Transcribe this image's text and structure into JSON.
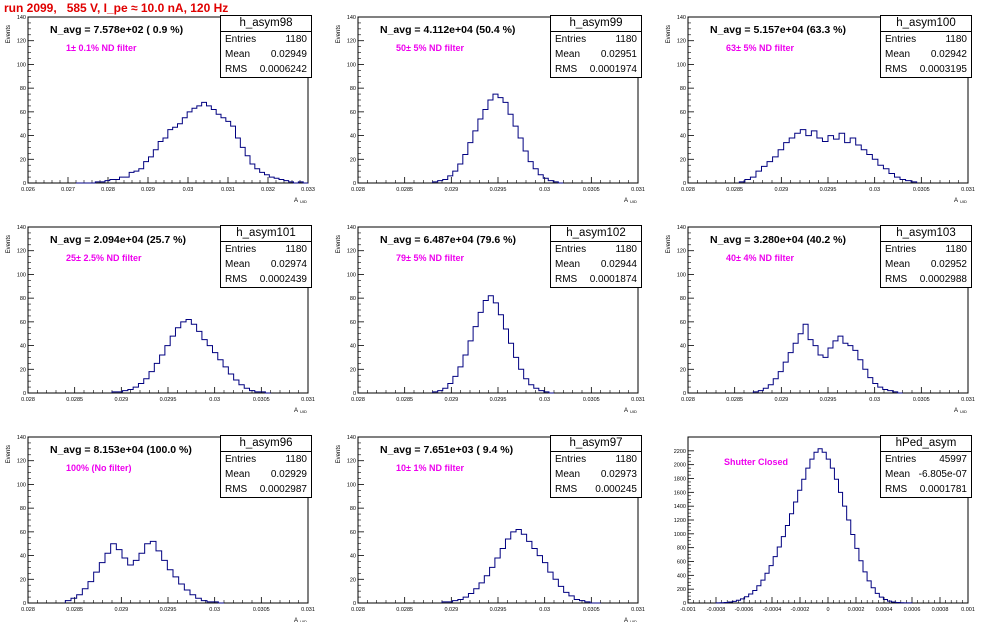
{
  "page": {
    "title": "run 2099,   585 V, I_pe ≈ 10.0 nA, 120 Hz"
  },
  "chart_data": [
    {
      "type": "histogram",
      "name": "h_asym98",
      "n_avg_label": "N_avg = 7.578e+02 ( 0.9 %)",
      "filter_label": "1± 0.1% ND filter",
      "stats": {
        "entries": "1180",
        "mean": "0.02949",
        "rms": "0.0006242"
      },
      "xlim": [
        0.026,
        0.033
      ],
      "ylim": [
        0,
        140
      ],
      "xticks": [
        0.026,
        0.027,
        0.028,
        0.029,
        0.03,
        0.031,
        0.032,
        0.033
      ],
      "xtick_labels": [
        "0.026",
        "0.027",
        "0.028",
        "0.029",
        "0.03",
        "0.031",
        "0.032",
        "0.033"
      ],
      "yticks": [
        0,
        20,
        40,
        60,
        80,
        100,
        120,
        140
      ],
      "xlabel": "A_UID",
      "ylabel": "Events",
      "bin_edges": [
        0.0272,
        0.033
      ],
      "values": [
        0,
        0,
        0,
        0,
        1,
        1,
        2,
        3,
        3,
        5,
        5,
        9,
        10,
        12,
        18,
        22,
        28,
        35,
        38,
        45,
        47,
        50,
        55,
        60,
        63,
        65,
        68,
        65,
        62,
        58,
        55,
        52,
        48,
        38,
        30,
        23,
        16,
        12,
        9,
        7,
        5,
        4,
        3,
        2,
        1,
        0,
        1,
        0
      ]
    },
    {
      "type": "histogram",
      "name": "h_asym99",
      "n_avg_label": "N_avg = 4.112e+04 (50.4 %)",
      "filter_label": "50± 5% ND filter",
      "stats": {
        "entries": "1180",
        "mean": "0.02951",
        "rms": "0.0001974"
      },
      "xlim": [
        0.028,
        0.031
      ],
      "ylim": [
        0,
        140
      ],
      "xticks": [
        0.028,
        0.0285,
        0.029,
        0.0295,
        0.03,
        0.0305,
        0.031
      ],
      "xtick_labels": [
        "0.028",
        "0.0285",
        "0.029",
        "0.0295",
        "0.03",
        "0.0305",
        "0.031"
      ],
      "yticks": [
        0,
        20,
        40,
        60,
        80,
        100,
        120,
        140
      ],
      "xlabel": "A_UID",
      "ylabel": "Events",
      "bin_edges": [
        0.0288,
        0.0302
      ],
      "values": [
        1,
        2,
        3,
        6,
        10,
        16,
        24,
        34,
        44,
        54,
        62,
        70,
        75,
        72,
        68,
        58,
        48,
        38,
        27,
        18,
        12,
        7,
        4,
        2,
        1,
        0
      ]
    },
    {
      "type": "histogram",
      "name": "h_asym100",
      "n_avg_label": "N_avg = 5.157e+04 (63.3 %)",
      "filter_label": "63± 5% ND filter",
      "stats": {
        "entries": "1180",
        "mean": "0.02942",
        "rms": "0.0003195"
      },
      "xlim": [
        0.028,
        0.031
      ],
      "ylim": [
        0,
        140
      ],
      "xticks": [
        0.028,
        0.0285,
        0.029,
        0.0295,
        0.03,
        0.0305,
        0.031
      ],
      "xtick_labels": [
        "0.028",
        "0.0285",
        "0.029",
        "0.0295",
        "0.03",
        "0.0305",
        "0.031"
      ],
      "yticks": [
        0,
        20,
        40,
        60,
        80,
        100,
        120,
        140
      ],
      "xlabel": "A_UID",
      "ylabel": "Events",
      "bin_edges": [
        0.02855,
        0.03045
      ],
      "values": [
        1,
        3,
        5,
        10,
        14,
        18,
        22,
        28,
        34,
        38,
        42,
        45,
        40,
        44,
        38,
        35,
        40,
        37,
        42,
        34,
        38,
        32,
        28,
        24,
        20,
        15,
        12,
        8,
        5,
        3,
        2,
        1
      ]
    },
    {
      "type": "histogram",
      "name": "h_asym101",
      "n_avg_label": "N_avg = 2.094e+04 (25.7 %)",
      "filter_label": "25± 2.5% ND filter",
      "stats": {
        "entries": "1180",
        "mean": "0.02974",
        "rms": "0.0002439"
      },
      "xlim": [
        0.028,
        0.031
      ],
      "ylim": [
        0,
        140
      ],
      "xticks": [
        0.028,
        0.0285,
        0.029,
        0.0295,
        0.03,
        0.0305,
        0.031
      ],
      "xtick_labels": [
        "0.028",
        "0.0285",
        "0.029",
        "0.0295",
        "0.03",
        "0.0305",
        "0.031"
      ],
      "yticks": [
        0,
        20,
        40,
        60,
        80,
        100,
        120,
        140
      ],
      "xlabel": "A_UID",
      "ylabel": "Events",
      "bin_edges": [
        0.0289,
        0.0306
      ],
      "values": [
        1,
        1,
        2,
        3,
        5,
        8,
        12,
        18,
        25,
        32,
        40,
        48,
        55,
        60,
        62,
        58,
        52,
        45,
        40,
        34,
        28,
        22,
        16,
        11,
        7,
        4,
        2,
        1,
        1,
        0
      ]
    },
    {
      "type": "histogram",
      "name": "h_asym102",
      "n_avg_label": "N_avg = 6.487e+04 (79.6 %)",
      "filter_label": "79± 5% ND filter",
      "stats": {
        "entries": "1180",
        "mean": "0.02944",
        "rms": "0.0001874"
      },
      "xlim": [
        0.028,
        0.031
      ],
      "ylim": [
        0,
        140
      ],
      "xticks": [
        0.028,
        0.0285,
        0.029,
        0.0295,
        0.03,
        0.0305,
        0.031
      ],
      "xtick_labels": [
        "0.028",
        "0.0285",
        "0.029",
        "0.0295",
        "0.03",
        "0.0305",
        "0.031"
      ],
      "yticks": [
        0,
        20,
        40,
        60,
        80,
        100,
        120,
        140
      ],
      "xlabel": "A_UID",
      "ylabel": "Events",
      "bin_edges": [
        0.0288,
        0.0301
      ],
      "values": [
        1,
        2,
        4,
        8,
        14,
        22,
        32,
        44,
        56,
        68,
        78,
        82,
        76,
        66,
        54,
        42,
        30,
        20,
        12,
        7,
        4,
        2,
        1,
        0
      ]
    },
    {
      "type": "histogram",
      "name": "h_asym103",
      "n_avg_label": "N_avg = 3.280e+04 (40.2 %)",
      "filter_label": "40± 4% ND filter",
      "stats": {
        "entries": "1180",
        "mean": "0.02952",
        "rms": "0.0002988"
      },
      "xlim": [
        0.028,
        0.031
      ],
      "ylim": [
        0,
        140
      ],
      "xticks": [
        0.028,
        0.0285,
        0.029,
        0.0295,
        0.03,
        0.0305,
        0.031
      ],
      "xtick_labels": [
        "0.028",
        "0.0285",
        "0.029",
        "0.0295",
        "0.03",
        "0.0305",
        "0.031"
      ],
      "yticks": [
        0,
        20,
        40,
        60,
        80,
        100,
        120,
        140
      ],
      "xlabel": "A_UID",
      "ylabel": "Events",
      "bin_edges": [
        0.0287,
        0.0303
      ],
      "values": [
        1,
        2,
        4,
        7,
        12,
        18,
        26,
        34,
        42,
        50,
        58,
        45,
        40,
        32,
        30,
        38,
        44,
        48,
        42,
        40,
        36,
        28,
        20,
        13,
        8,
        5,
        3,
        2,
        1,
        0
      ]
    },
    {
      "type": "histogram",
      "name": "h_asym96",
      "n_avg_label": "N_avg = 8.153e+04 (100.0 %)",
      "filter_label": "100% (No filter)",
      "stats": {
        "entries": "1180",
        "mean": "0.02929",
        "rms": "0.0002987"
      },
      "xlim": [
        0.028,
        0.031
      ],
      "ylim": [
        0,
        140
      ],
      "xticks": [
        0.028,
        0.0285,
        0.029,
        0.0295,
        0.03,
        0.0305,
        0.031
      ],
      "xtick_labels": [
        "0.028",
        "0.0285",
        "0.029",
        "0.0295",
        "0.03",
        "0.0305",
        "0.031"
      ],
      "yticks": [
        0,
        20,
        40,
        60,
        80,
        100,
        120,
        140
      ],
      "xlabel": "A_UID",
      "ylabel": "Events",
      "bin_edges": [
        0.0284,
        0.0301
      ],
      "values": [
        2,
        4,
        7,
        12,
        18,
        26,
        34,
        42,
        50,
        45,
        38,
        32,
        36,
        42,
        50,
        52,
        44,
        36,
        28,
        22,
        16,
        11,
        7,
        4,
        2,
        1,
        1,
        0
      ]
    },
    {
      "type": "histogram",
      "name": "h_asym97",
      "n_avg_label": "N_avg = 7.651e+03 ( 9.4 %)",
      "filter_label": "10± 1% ND filter",
      "stats": {
        "entries": "1180",
        "mean": "0.02973",
        "rms": "0.000245"
      },
      "xlim": [
        0.028,
        0.031
      ],
      "ylim": [
        0,
        140
      ],
      "xticks": [
        0.028,
        0.0285,
        0.029,
        0.0295,
        0.03,
        0.0305,
        0.031
      ],
      "xtick_labels": [
        "0.028",
        "0.0285",
        "0.029",
        "0.0295",
        "0.03",
        "0.0305",
        "0.031"
      ],
      "yticks": [
        0,
        20,
        40,
        60,
        80,
        100,
        120,
        140
      ],
      "xlabel": "A_UID",
      "ylabel": "Events",
      "bin_edges": [
        0.0289,
        0.0306
      ],
      "values": [
        1,
        1,
        2,
        3,
        5,
        8,
        12,
        17,
        23,
        30,
        38,
        46,
        54,
        60,
        62,
        58,
        52,
        46,
        40,
        34,
        26,
        20,
        14,
        9,
        6,
        3,
        2,
        1,
        0,
        0
      ]
    },
    {
      "type": "histogram",
      "name": "hPed_asym",
      "n_avg_label": "",
      "filter_label": "Shutter Closed",
      "stats": {
        "entries": "45997",
        "mean": "-6.805e-07",
        "rms": "0.0001781"
      },
      "xlim": [
        -0.001,
        0.001
      ],
      "ylim": [
        0,
        2400
      ],
      "xticks": [
        -0.001,
        -0.0008,
        -0.0006,
        -0.0004,
        -0.0002,
        0,
        0.0002,
        0.0004,
        0.0006,
        0.0008,
        0.001
      ],
      "xtick_labels": [
        "-0.001",
        "-0.0008",
        "-0.0006",
        "-0.0004",
        "-0.0002",
        "0",
        "0.0002",
        "0.0004",
        "0.0006",
        "0.0008",
        "0.001"
      ],
      "yticks": [
        0,
        200,
        400,
        600,
        800,
        1000,
        1200,
        1400,
        1600,
        1800,
        2000,
        2200
      ],
      "xlabel": "",
      "ylabel": "",
      "bin_edges": [
        -0.0008,
        0.0006
      ],
      "values": [
        2,
        4,
        8,
        14,
        24,
        40,
        60,
        90,
        130,
        180,
        250,
        330,
        430,
        540,
        670,
        810,
        960,
        1120,
        1290,
        1460,
        1630,
        1790,
        1950,
        2080,
        2180,
        2230,
        2180,
        2080,
        1950,
        1790,
        1600,
        1400,
        1200,
        990,
        790,
        610,
        450,
        320,
        220,
        140,
        85,
        50,
        28,
        15,
        8,
        4,
        2,
        1
      ]
    }
  ]
}
